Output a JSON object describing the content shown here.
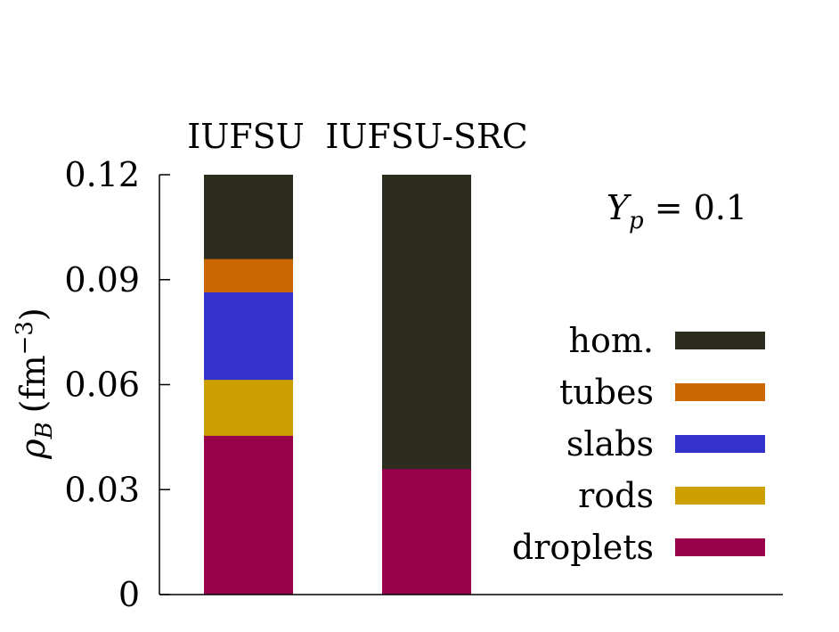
{
  "chart_data": {
    "type": "bar",
    "stacked": true,
    "categories": [
      "IUFSU",
      "IUFSU-SRC"
    ],
    "series": [
      {
        "name": "droplets",
        "color": "#99004c",
        "values": [
          0.0455,
          0.036
        ]
      },
      {
        "name": "rods",
        "color": "#cca000",
        "values": [
          0.016,
          0
        ]
      },
      {
        "name": "slabs",
        "color": "#3333cc",
        "values": [
          0.025,
          0
        ]
      },
      {
        "name": "tubes",
        "color": "#cc6600",
        "values": [
          0.0095,
          0
        ]
      },
      {
        "name": "hom.",
        "color": "#2d2d1f",
        "values": [
          0.024,
          0.084
        ]
      }
    ],
    "ylim": [
      0,
      0.12
    ],
    "yticks": [
      "0",
      "0.03",
      "0.06",
      "0.09",
      "0.12"
    ],
    "ylabel": {
      "main": "ρ",
      "sub": "B",
      "unit_open": "(fm",
      "unit_exp": "−3",
      "unit_close": ")"
    },
    "annotation": {
      "var": "Y",
      "sub": "p",
      "rest": " = 0.1"
    },
    "legend_position": "right",
    "grid": false
  }
}
